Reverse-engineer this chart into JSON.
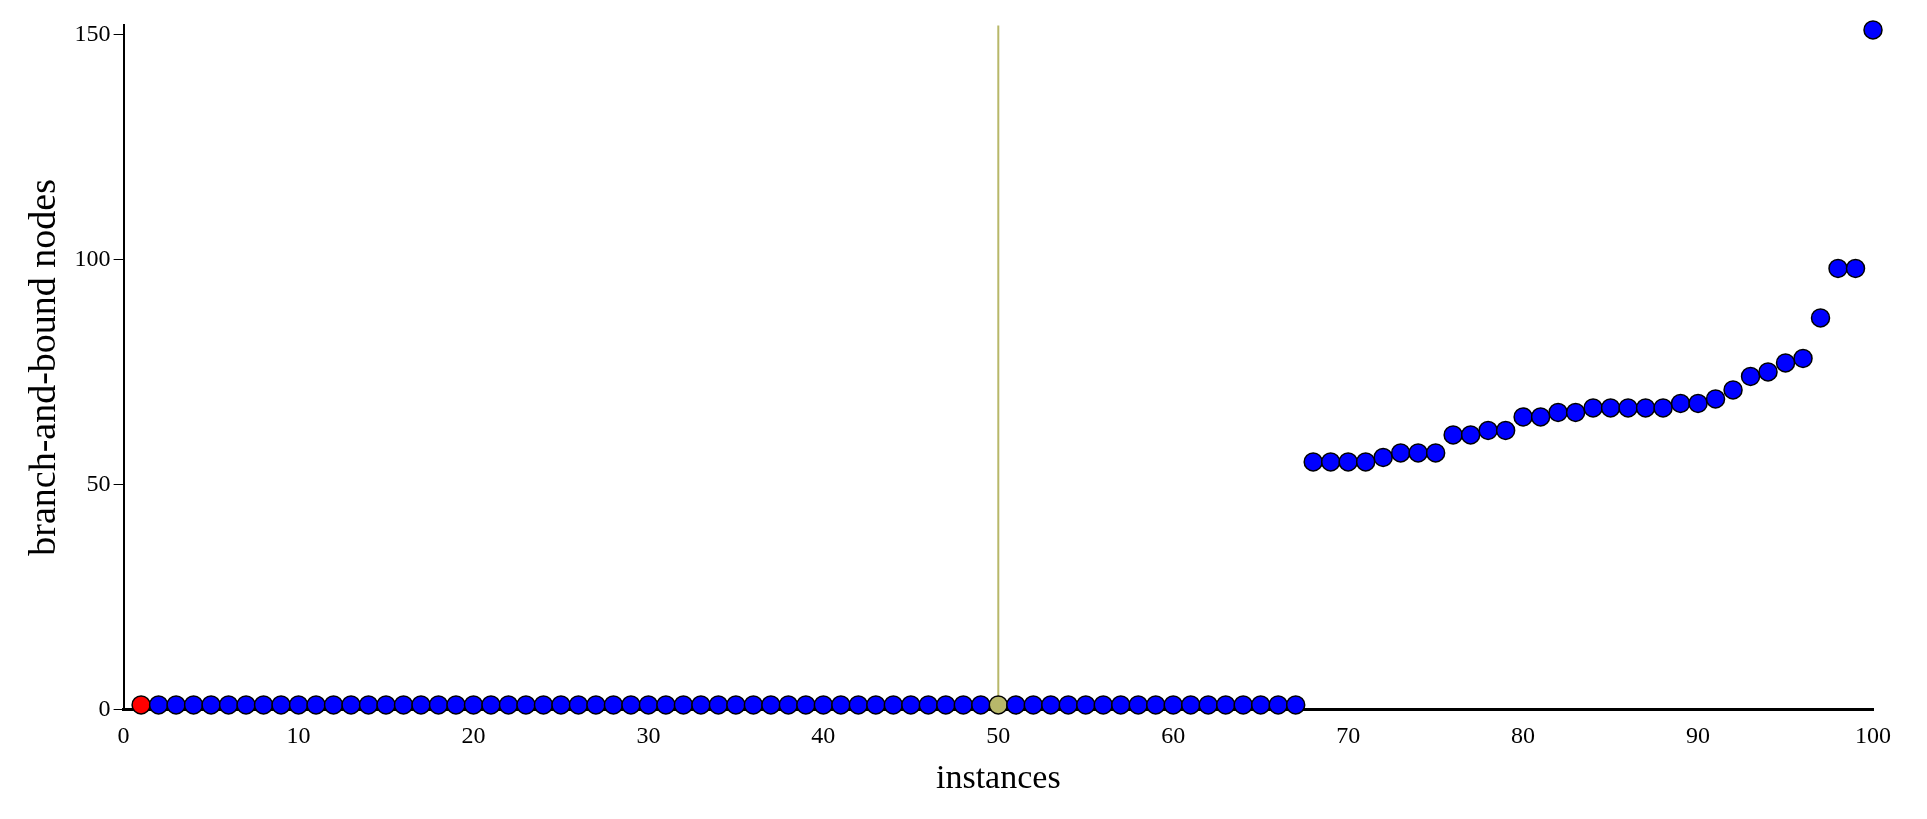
{
  "chart_data": {
    "type": "scatter",
    "xlabel": "instances",
    "ylabel": "branch-and-bound nodes",
    "x": [
      1,
      2,
      3,
      4,
      5,
      6,
      7,
      8,
      9,
      10,
      11,
      12,
      13,
      14,
      15,
      16,
      17,
      18,
      19,
      20,
      21,
      22,
      23,
      24,
      25,
      26,
      27,
      28,
      29,
      30,
      31,
      32,
      33,
      34,
      35,
      36,
      37,
      38,
      39,
      40,
      41,
      42,
      43,
      44,
      45,
      46,
      47,
      48,
      49,
      50,
      51,
      52,
      53,
      54,
      55,
      56,
      57,
      58,
      59,
      60,
      61,
      62,
      63,
      64,
      65,
      66,
      67,
      68,
      69,
      70,
      71,
      72,
      73,
      74,
      75,
      76,
      77,
      78,
      79,
      80,
      81,
      82,
      83,
      84,
      85,
      86,
      87,
      88,
      89,
      90,
      91,
      92,
      93,
      94,
      95,
      96,
      97,
      98,
      99,
      100
    ],
    "values": [
      1,
      1,
      1,
      1,
      1,
      1,
      1,
      1,
      1,
      1,
      1,
      1,
      1,
      1,
      1,
      1,
      1,
      1,
      1,
      1,
      1,
      1,
      1,
      1,
      1,
      1,
      1,
      1,
      1,
      1,
      1,
      1,
      1,
      1,
      1,
      1,
      1,
      1,
      1,
      1,
      1,
      1,
      1,
      1,
      1,
      1,
      1,
      1,
      1,
      1,
      1,
      1,
      1,
      1,
      1,
      1,
      1,
      1,
      1,
      1,
      1,
      1,
      1,
      1,
      1,
      1,
      1,
      55,
      55,
      55,
      55,
      56,
      57,
      57,
      57,
      61,
      61,
      62,
      62,
      65,
      65,
      66,
      66,
      67,
      67,
      67,
      67,
      67,
      68,
      68,
      69,
      71,
      74,
      75,
      77,
      78,
      87,
      98,
      98,
      151
    ],
    "colors": [
      "#ff0000",
      "#0000ff",
      "#0000ff",
      "#0000ff",
      "#0000ff",
      "#0000ff",
      "#0000ff",
      "#0000ff",
      "#0000ff",
      "#0000ff",
      "#0000ff",
      "#0000ff",
      "#0000ff",
      "#0000ff",
      "#0000ff",
      "#0000ff",
      "#0000ff",
      "#0000ff",
      "#0000ff",
      "#0000ff",
      "#0000ff",
      "#0000ff",
      "#0000ff",
      "#0000ff",
      "#0000ff",
      "#0000ff",
      "#0000ff",
      "#0000ff",
      "#0000ff",
      "#0000ff",
      "#0000ff",
      "#0000ff",
      "#0000ff",
      "#0000ff",
      "#0000ff",
      "#0000ff",
      "#0000ff",
      "#0000ff",
      "#0000ff",
      "#0000ff",
      "#0000ff",
      "#0000ff",
      "#0000ff",
      "#0000ff",
      "#0000ff",
      "#0000ff",
      "#0000ff",
      "#0000ff",
      "#0000ff",
      "#b8b86a",
      "#0000ff",
      "#0000ff",
      "#0000ff",
      "#0000ff",
      "#0000ff",
      "#0000ff",
      "#0000ff",
      "#0000ff",
      "#0000ff",
      "#0000ff",
      "#0000ff",
      "#0000ff",
      "#0000ff",
      "#0000ff",
      "#0000ff",
      "#0000ff",
      "#0000ff",
      "#0000ff",
      "#0000ff",
      "#0000ff",
      "#0000ff",
      "#0000ff",
      "#0000ff",
      "#0000ff",
      "#0000ff",
      "#0000ff",
      "#0000ff",
      "#0000ff",
      "#0000ff",
      "#0000ff",
      "#0000ff",
      "#0000ff",
      "#0000ff",
      "#0000ff",
      "#0000ff",
      "#0000ff",
      "#0000ff",
      "#0000ff",
      "#0000ff",
      "#0000ff",
      "#0000ff",
      "#0000ff",
      "#0000ff",
      "#0000ff",
      "#0000ff",
      "#0000ff",
      "#0000ff",
      "#0000ff",
      "#0000ff",
      "#0000ff"
    ],
    "xlim": [
      0,
      100
    ],
    "xticks": [
      0,
      10,
      20,
      30,
      40,
      50,
      60,
      70,
      80,
      90,
      100
    ],
    "ylim": [
      0,
      152
    ],
    "yticks": [
      0,
      50,
      100,
      150
    ],
    "ref_lines": [
      {
        "axis": "x",
        "value": 50,
        "color": "#b8b86a"
      }
    ],
    "marker": "circle",
    "grid": false,
    "legend": false
  }
}
